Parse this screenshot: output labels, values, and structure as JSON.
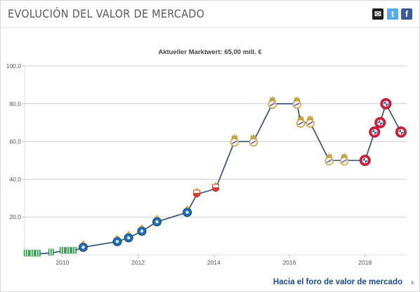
{
  "header": {
    "title": "EVOLUCIÓN DEL VALOR DE MERCADO",
    "share": [
      {
        "name": "mail-icon",
        "glyph": "✉",
        "color": "#1d1d1d"
      },
      {
        "name": "twitter-icon",
        "glyph": "t",
        "color": "#55acee"
      },
      {
        "name": "facebook-icon",
        "glyph": "f",
        "color": "#3b5998"
      }
    ]
  },
  "chart_data": {
    "type": "line",
    "title": "Aktueller Marktwert: 65,00 mill. €",
    "xlim": [
      2009.0,
      2019.1
    ],
    "ylim": [
      0,
      100
    ],
    "y_ticks": [
      "20,0",
      "40,0",
      "60,0",
      "80,0",
      "100,0"
    ],
    "y_tick_values": [
      20,
      40,
      60,
      80,
      100
    ],
    "x_ticks": [
      "2010",
      "2012",
      "2014",
      "2016",
      "2018"
    ],
    "x_tick_values": [
      2010,
      2012,
      2014,
      2016,
      2018
    ],
    "grid": true,
    "line_color": "#2f4b73",
    "series": [
      {
        "values": [
          {
            "x": 2009.05,
            "y": 0.5,
            "club": "green"
          },
          {
            "x": 2009.2,
            "y": 0.5,
            "club": "green"
          },
          {
            "x": 2009.35,
            "y": 0.5,
            "club": "green"
          },
          {
            "x": 2009.7,
            "y": 1.0,
            "club": "green"
          },
          {
            "x": 2010.0,
            "y": 2.0,
            "club": "green"
          },
          {
            "x": 2010.15,
            "y": 2.0,
            "club": "green"
          },
          {
            "x": 2010.3,
            "y": 2.0,
            "club": "green"
          },
          {
            "x": 2010.55,
            "y": 4.0,
            "club": "porto"
          },
          {
            "x": 2011.45,
            "y": 7.0,
            "club": "porto"
          },
          {
            "x": 2011.75,
            "y": 9.0,
            "club": "porto"
          },
          {
            "x": 2012.1,
            "y": 12.5,
            "club": "porto"
          },
          {
            "x": 2012.5,
            "y": 17.5,
            "club": "porto"
          },
          {
            "x": 2013.3,
            "y": 22.5,
            "club": "porto"
          },
          {
            "x": 2013.55,
            "y": 32.0,
            "club": "monaco"
          },
          {
            "x": 2014.05,
            "y": 35.0,
            "club": "monaco"
          },
          {
            "x": 2014.55,
            "y": 60.0,
            "club": "real"
          },
          {
            "x": 2015.05,
            "y": 60.0,
            "club": "real"
          },
          {
            "x": 2015.55,
            "y": 80.0,
            "club": "real"
          },
          {
            "x": 2016.2,
            "y": 80.0,
            "club": "real"
          },
          {
            "x": 2016.3,
            "y": 70.0,
            "club": "real"
          },
          {
            "x": 2016.55,
            "y": 70.0,
            "club": "real"
          },
          {
            "x": 2017.05,
            "y": 50.0,
            "club": "real"
          },
          {
            "x": 2017.45,
            "y": 50.0,
            "club": "real"
          },
          {
            "x": 2018.0,
            "y": 50.0,
            "club": "bayern"
          },
          {
            "x": 2018.25,
            "y": 65.0,
            "club": "bayern"
          },
          {
            "x": 2018.4,
            "y": 70.0,
            "club": "bayern"
          },
          {
            "x": 2018.55,
            "y": 80.0,
            "club": "bayern"
          },
          {
            "x": 2018.95,
            "y": 65.0,
            "club": "bayern"
          }
        ]
      }
    ]
  },
  "footer": {
    "link_label": "Hacia el foro de valor de mercado",
    "chevron": "›"
  }
}
